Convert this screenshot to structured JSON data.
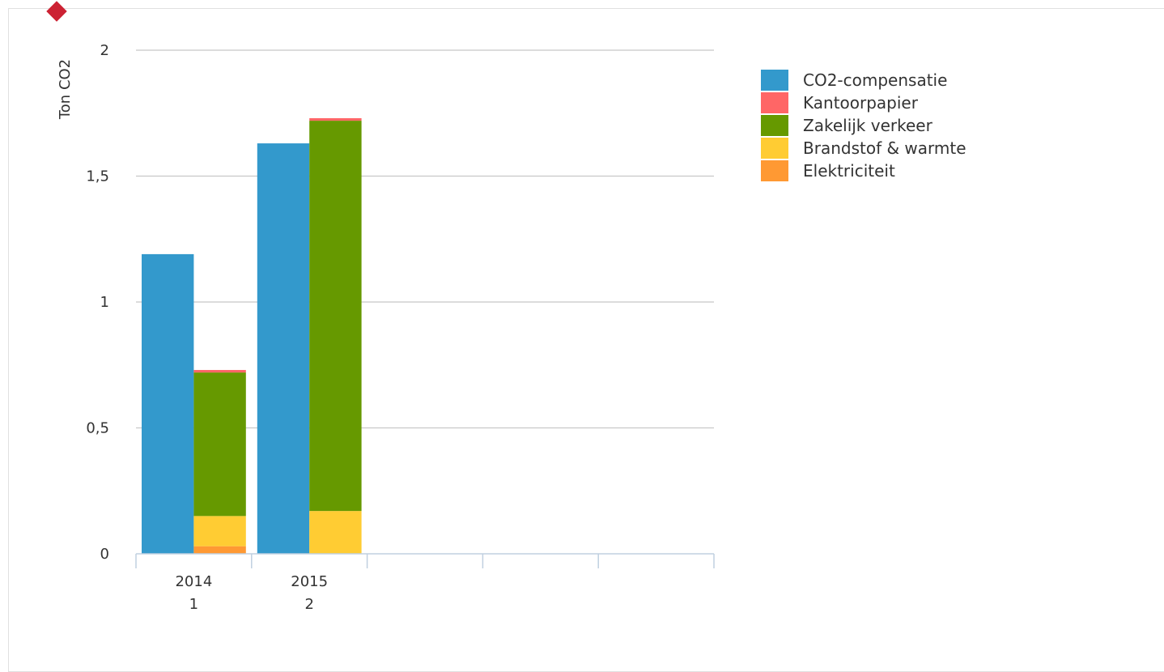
{
  "chart_data": {
    "type": "bar",
    "stacked": true,
    "ylabel": "Ton CO2",
    "ylim": [
      0,
      2
    ],
    "yticks": [
      "0",
      "0,5",
      "1",
      "1,5",
      "2"
    ],
    "yticks_values": [
      0,
      0.5,
      1,
      1.5,
      2
    ],
    "grid": true,
    "legend_position": "top-right",
    "categories": [
      {
        "year": "2014",
        "sub": "1"
      },
      {
        "year": "2015",
        "sub": "2"
      },
      {
        "year": "",
        "sub": ""
      },
      {
        "year": "",
        "sub": ""
      },
      {
        "year": "",
        "sub": ""
      }
    ],
    "stacks": [
      {
        "name": "compensation",
        "series": [
          "CO2-compensatie"
        ]
      },
      {
        "name": "emissions",
        "series": [
          "Elektriciteit",
          "Brandstof & warmte",
          "Zakelijk verkeer",
          "Kantoorpapier"
        ]
      }
    ],
    "series": [
      {
        "name": "CO2-compensatie",
        "color": "#3399cc",
        "stack": "compensation",
        "values": [
          1.19,
          1.63,
          null,
          null,
          null
        ]
      },
      {
        "name": "Kantoorpapier",
        "color": "#ff6666",
        "stack": "emissions",
        "values": [
          0.01,
          0.01,
          null,
          null,
          null
        ]
      },
      {
        "name": "Zakelijk verkeer",
        "color": "#669900",
        "stack": "emissions",
        "values": [
          0.57,
          1.55,
          null,
          null,
          null
        ]
      },
      {
        "name": "Brandstof & warmte",
        "color": "#ffcc33",
        "stack": "emissions",
        "values": [
          0.12,
          0.17,
          null,
          null,
          null
        ]
      },
      {
        "name": "Elektriciteit",
        "color": "#ff9933",
        "stack": "emissions",
        "values": [
          0.03,
          0.0,
          null,
          null,
          null
        ]
      }
    ],
    "legend_order": [
      "CO2-compensatie",
      "Kantoorpapier",
      "Zakelijk verkeer",
      "Brandstof & warmte",
      "Elektriciteit"
    ]
  }
}
